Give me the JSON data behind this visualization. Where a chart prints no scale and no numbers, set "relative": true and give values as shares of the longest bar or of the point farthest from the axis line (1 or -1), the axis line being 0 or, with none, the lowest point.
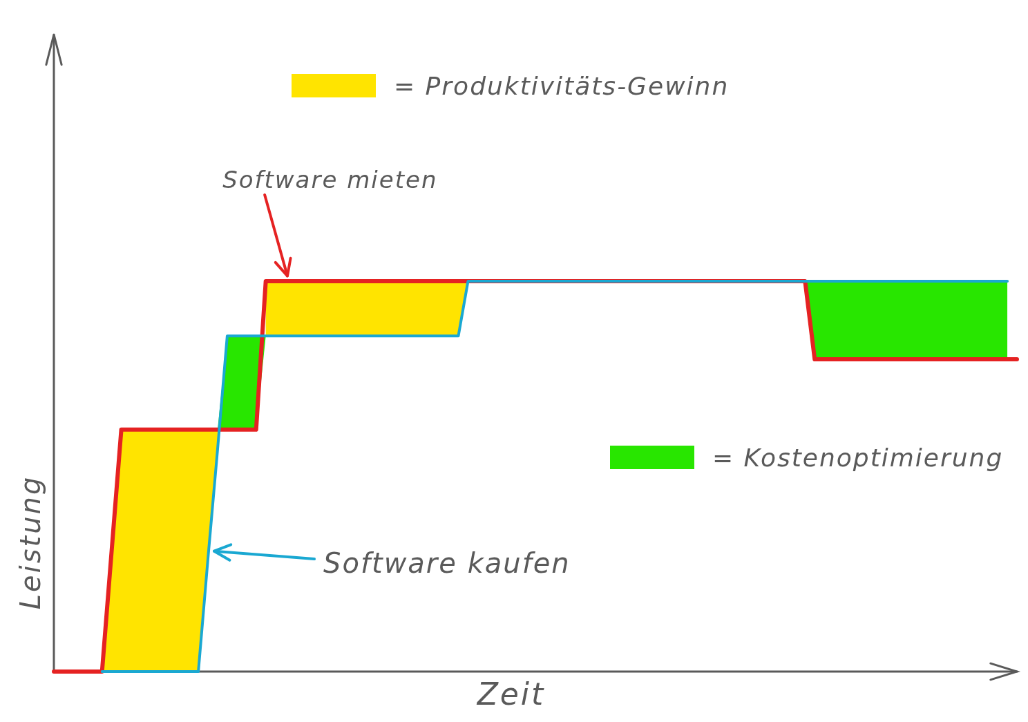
{
  "chart_data": {
    "type": "line",
    "relative": true,
    "xlabel": "Zeit",
    "ylabel": "Leistung",
    "legend": "top",
    "categories": [
      null,
      null,
      null,
      null,
      null,
      null,
      null,
      null,
      null,
      null,
      null,
      null,
      null,
      null,
      null,
      null,
      null,
      null,
      null,
      null,
      null,
      null,
      null,
      null,
      null,
      null,
      null,
      null,
      null,
      null,
      null,
      null,
      null,
      null,
      null,
      null,
      null,
      null,
      null,
      null,
      null,
      null,
      null,
      null,
      null,
      null,
      null,
      null,
      null,
      null,
      null,
      null,
      null,
      null,
      null,
      null,
      null,
      null,
      null,
      null,
      null,
      null,
      null,
      null,
      null,
      null,
      null,
      null,
      null,
      null,
      null,
      null,
      null,
      null,
      null,
      null,
      null,
      null,
      null,
      null,
      null,
      null,
      null,
      null,
      null,
      null,
      null,
      null,
      null,
      null,
      null,
      null,
      null,
      null,
      null,
      null,
      null,
      null,
      null,
      null,
      null
    ],
    "series": [
      {
        "type": "area",
        "name": "= Produktivitäts-Gewinn",
        "color": "#ffe400",
        "values": [
          null,
          null,
          null,
          null,
          null,
          null,
          null,
          null,
          null,
          null,
          null,
          null,
          null,
          null,
          null,
          null,
          null,
          null,
          null,
          null,
          null,
          null,
          null,
          null,
          null,
          null,
          null,
          null,
          null,
          null,
          null,
          null,
          null,
          null,
          null,
          null,
          null,
          null,
          null,
          null,
          null,
          null,
          null,
          null,
          null,
          null,
          null,
          null,
          null,
          null,
          null,
          null,
          null,
          null,
          null,
          null,
          null,
          null,
          null,
          null,
          null,
          null,
          null,
          null,
          null,
          null,
          null,
          null,
          null,
          null,
          null,
          null,
          null,
          null,
          null,
          null,
          null,
          null,
          null,
          null,
          null,
          null,
          null,
          null,
          null,
          null,
          null,
          null,
          null,
          null,
          null,
          null,
          null,
          null,
          null,
          null,
          null,
          null,
          null,
          null,
          null
        ],
        "upper": [
          null,
          null,
          null,
          null,
          null,
          0,
          0.31,
          0.62,
          0.62,
          0.62,
          0.62,
          0.62,
          0.62,
          0.62,
          0.62,
          0.62,
          0.62,
          0.62,
          null,
          null,
          null,
          null,
          1,
          1,
          1,
          1,
          1,
          1,
          1,
          1,
          1,
          1,
          1,
          1,
          1,
          1,
          1,
          1,
          1,
          1,
          1,
          1,
          1,
          1,
          null,
          null,
          null,
          null,
          null,
          null,
          null,
          null,
          null,
          null,
          null,
          null,
          null,
          null,
          null,
          null,
          null,
          null,
          null,
          null,
          null,
          null,
          null,
          null,
          null,
          null,
          null,
          null,
          null,
          null,
          null,
          null,
          null,
          null,
          null,
          null,
          null,
          null,
          null,
          null,
          null,
          null,
          null,
          null,
          null,
          null,
          null,
          null,
          null,
          null,
          null,
          null,
          null,
          null,
          null,
          null,
          null
        ],
        "lower": [
          null,
          null,
          null,
          null,
          null,
          0,
          0,
          0,
          0,
          0,
          0,
          0,
          0,
          0,
          0,
          0,
          0.29,
          0.57,
          null,
          null,
          null,
          null,
          0.86,
          0.86,
          0.86,
          0.86,
          0.86,
          0.86,
          0.86,
          0.86,
          0.86,
          0.86,
          0.86,
          0.86,
          0.86,
          0.86,
          0.86,
          0.86,
          0.86,
          0.86,
          0.86,
          0.86,
          0.86,
          1,
          null,
          null,
          null,
          null,
          null,
          null,
          null,
          null,
          null,
          null,
          null,
          null,
          null,
          null,
          null,
          null,
          null,
          null,
          null,
          null,
          null,
          null,
          null,
          null,
          null,
          null,
          null,
          null,
          null,
          null,
          null,
          null,
          null,
          null,
          null,
          null,
          null,
          null,
          null,
          null,
          null,
          null,
          null,
          null,
          null,
          null,
          null,
          null,
          null,
          null,
          null,
          null,
          null,
          null,
          null,
          null,
          null
        ]
      },
      {
        "type": "area",
        "name": "= Kostenoptimierung",
        "color": "#28e600",
        "values": [
          null,
          null,
          null,
          null,
          null,
          null,
          null,
          null,
          null,
          null,
          null,
          null,
          null,
          null,
          null,
          null,
          null,
          null,
          null,
          null,
          null,
          null,
          null,
          null,
          null,
          null,
          null,
          null,
          null,
          null,
          null,
          null,
          null,
          null,
          null,
          null,
          null,
          null,
          null,
          null,
          null,
          null,
          null,
          null,
          null,
          null,
          null,
          null,
          null,
          null,
          null,
          null,
          null,
          null,
          null,
          null,
          null,
          null,
          null,
          null,
          null,
          null,
          null,
          null,
          null,
          null,
          null,
          null,
          null,
          null,
          null,
          null,
          null,
          null,
          null,
          null,
          null,
          null,
          null,
          null,
          null,
          null,
          null,
          null,
          null,
          null,
          null,
          null,
          null,
          null,
          null,
          null,
          null,
          null,
          null,
          null,
          null,
          null,
          null,
          null,
          null
        ],
        "upper": [
          null,
          null,
          null,
          null,
          null,
          null,
          null,
          null,
          null,
          null,
          null,
          null,
          null,
          null,
          null,
          null,
          null,
          0.62,
          0.86,
          0.86,
          0.86,
          0.86,
          0.86,
          null,
          null,
          null,
          null,
          null,
          null,
          null,
          null,
          null,
          null,
          null,
          null,
          null,
          null,
          null,
          null,
          null,
          null,
          null,
          null,
          null,
          null,
          null,
          null,
          null,
          null,
          null,
          null,
          null,
          null,
          null,
          null,
          null,
          null,
          null,
          null,
          null,
          null,
          null,
          null,
          null,
          null,
          null,
          null,
          null,
          null,
          null,
          null,
          null,
          null,
          null,
          null,
          null,
          null,
          null,
          1,
          1,
          1,
          1,
          1,
          1,
          1,
          1,
          1,
          1,
          1,
          1,
          1,
          1,
          1,
          1,
          1,
          1,
          1,
          1,
          1,
          1,
          null
        ],
        "lower": [
          null,
          null,
          null,
          null,
          null,
          null,
          null,
          null,
          null,
          null,
          null,
          null,
          null,
          null,
          null,
          null,
          null,
          0.62,
          0.62,
          0.62,
          0.62,
          0.62,
          0.86,
          null,
          null,
          null,
          null,
          null,
          null,
          null,
          null,
          null,
          null,
          null,
          null,
          null,
          null,
          null,
          null,
          null,
          null,
          null,
          null,
          null,
          null,
          null,
          null,
          null,
          null,
          null,
          null,
          null,
          null,
          null,
          null,
          null,
          null,
          null,
          null,
          null,
          null,
          null,
          null,
          null,
          null,
          null,
          null,
          null,
          null,
          null,
          null,
          null,
          null,
          null,
          null,
          null,
          null,
          null,
          1,
          0.8,
          0.8,
          0.8,
          0.8,
          0.8,
          0.8,
          0.8,
          0.8,
          0.8,
          0.8,
          0.8,
          0.8,
          0.8,
          0.8,
          0.8,
          0.8,
          0.8,
          0.8,
          0.8,
          0.8,
          0.8,
          null
        ]
      },
      {
        "name": "Software mieten",
        "color": "#e52222",
        "values": [
          0,
          0,
          0,
          0,
          0,
          0,
          0.31,
          0.62,
          0.62,
          0.62,
          0.62,
          0.62,
          0.62,
          0.62,
          0.62,
          0.62,
          0.62,
          0.62,
          0.62,
          0.62,
          0.62,
          0.62,
          1,
          1,
          1,
          1,
          1,
          1,
          1,
          1,
          1,
          1,
          1,
          1,
          1,
          1,
          1,
          1,
          1,
          1,
          1,
          1,
          1,
          1,
          1,
          1,
          1,
          1,
          1,
          1,
          1,
          1,
          1,
          1,
          1,
          1,
          1,
          1,
          1,
          1,
          1,
          1,
          1,
          1,
          1,
          1,
          1,
          1,
          1,
          1,
          1,
          1,
          1,
          1,
          1,
          1,
          1,
          1,
          1,
          0.8,
          0.8,
          0.8,
          0.8,
          0.8,
          0.8,
          0.8,
          0.8,
          0.8,
          0.8,
          0.8,
          0.8,
          0.8,
          0.8,
          0.8,
          0.8,
          0.8,
          0.8,
          0.8,
          0.8,
          0.8,
          0.8
        ]
      },
      {
        "name": "Software kaufen",
        "color": "#1aa8d2",
        "values": [
          null,
          null,
          null,
          null,
          null,
          0,
          0,
          0,
          0,
          0,
          0,
          0,
          0,
          0,
          0,
          0,
          0.29,
          0.57,
          0.86,
          0.86,
          0.86,
          0.86,
          0.86,
          0.86,
          0.86,
          0.86,
          0.86,
          0.86,
          0.86,
          0.86,
          0.86,
          0.86,
          0.86,
          0.86,
          0.86,
          0.86,
          0.86,
          0.86,
          0.86,
          0.86,
          0.86,
          0.86,
          0.86,
          1,
          1,
          1,
          1,
          1,
          1,
          1,
          1,
          1,
          1,
          1,
          1,
          1,
          1,
          1,
          1,
          1,
          1,
          1,
          1,
          1,
          1,
          1,
          1,
          1,
          1,
          1,
          1,
          1,
          1,
          1,
          1,
          1,
          1,
          1,
          1,
          1,
          1,
          1,
          1,
          1,
          1,
          1,
          1,
          1,
          1,
          1,
          1,
          1,
          1,
          1,
          1,
          1,
          1,
          1,
          1,
          1,
          null
        ]
      }
    ]
  }
}
